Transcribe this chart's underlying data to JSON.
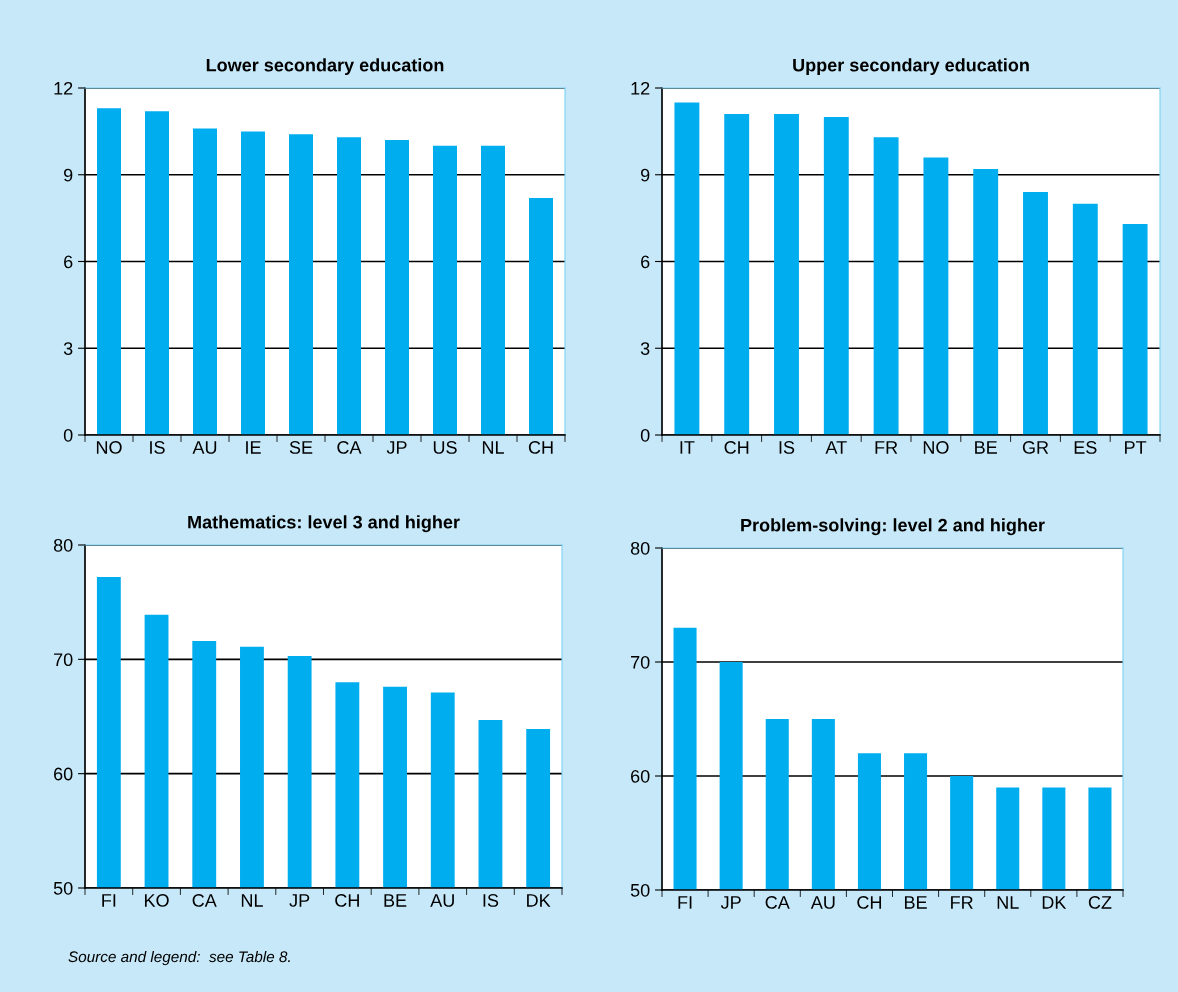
{
  "chart_data": [
    {
      "type": "bar",
      "title": "Lower secondary education",
      "categories": [
        "NO",
        "IS",
        "AU",
        "IE",
        "SE",
        "CA",
        "JP",
        "US",
        "NL",
        "CH"
      ],
      "values": [
        11.3,
        11.2,
        10.6,
        10.5,
        10.4,
        10.3,
        10.2,
        10.0,
        10.0,
        8.2
      ],
      "color": "#00adee",
      "ylim": [
        0,
        12
      ],
      "yticks": [
        0,
        3,
        6,
        9,
        12
      ],
      "grid": "y"
    },
    {
      "type": "bar",
      "title": "Upper secondary education",
      "categories": [
        "IT",
        "CH",
        "IS",
        "AT",
        "FR",
        "NO",
        "BE",
        "GR",
        "ES",
        "PT"
      ],
      "values": [
        11.5,
        11.1,
        11.1,
        11.0,
        10.3,
        9.6,
        9.2,
        8.4,
        8.0,
        7.3
      ],
      "color": "#00adee",
      "ylim": [
        0,
        12
      ],
      "yticks": [
        0,
        3,
        6,
        9,
        12
      ],
      "grid": "y"
    },
    {
      "type": "bar",
      "title": "Mathematics: level 3 and higher",
      "categories": [
        "FI",
        "KO",
        "CA",
        "NL",
        "JP",
        "CH",
        "BE",
        "AU",
        "IS",
        "DK"
      ],
      "values": [
        77.2,
        73.9,
        71.6,
        71.1,
        70.3,
        68.0,
        67.6,
        67.1,
        64.7,
        63.9
      ],
      "color": "#00adee",
      "ylim": [
        50,
        80
      ],
      "yticks": [
        50,
        60,
        70,
        80
      ],
      "grid": "y",
      "annotations": [
        "Source and legend:  see Table 8."
      ]
    },
    {
      "type": "bar",
      "title": "Problem-solving: level 2 and higher",
      "categories": [
        "FI",
        "JP",
        "CA",
        "AU",
        "CH",
        "BE",
        "FR",
        "NL",
        "DK",
        "CZ"
      ],
      "values": [
        73,
        70,
        65,
        65,
        62,
        62,
        60,
        59,
        59,
        59
      ],
      "color": "#00adee",
      "ylim": [
        50,
        80
      ],
      "yticks": [
        50,
        60,
        70,
        80
      ],
      "grid": "y"
    }
  ]
}
